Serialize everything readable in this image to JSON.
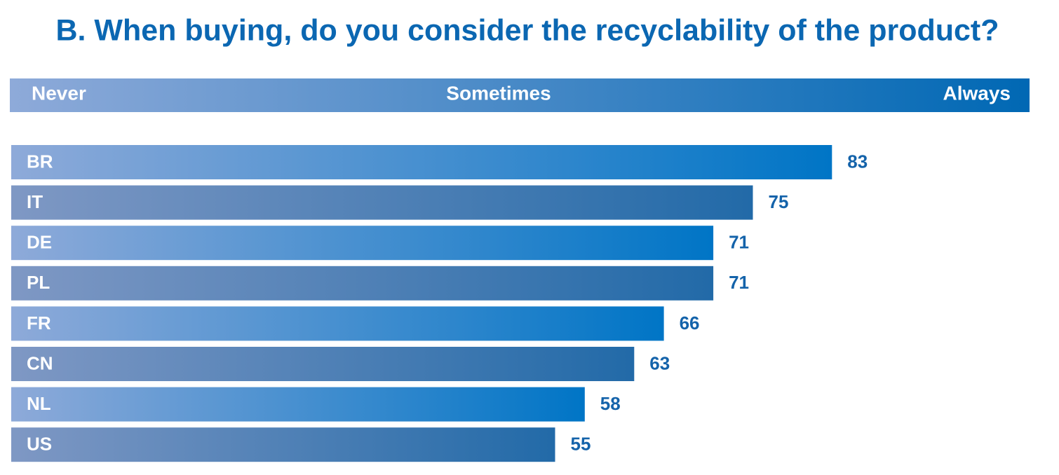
{
  "chart_data": {
    "type": "bar",
    "orientation": "horizontal",
    "title": "B. When buying, do you consider the recyclability of the product?",
    "scale_labels": [
      "Never",
      "Sometimes",
      "Always"
    ],
    "categories": [
      "BR",
      "IT",
      "DE",
      "PL",
      "FR",
      "CN",
      "NL",
      "US"
    ],
    "values": [
      83,
      75,
      71,
      71,
      66,
      63,
      58,
      55
    ],
    "xlim": [
      0,
      100
    ]
  }
}
